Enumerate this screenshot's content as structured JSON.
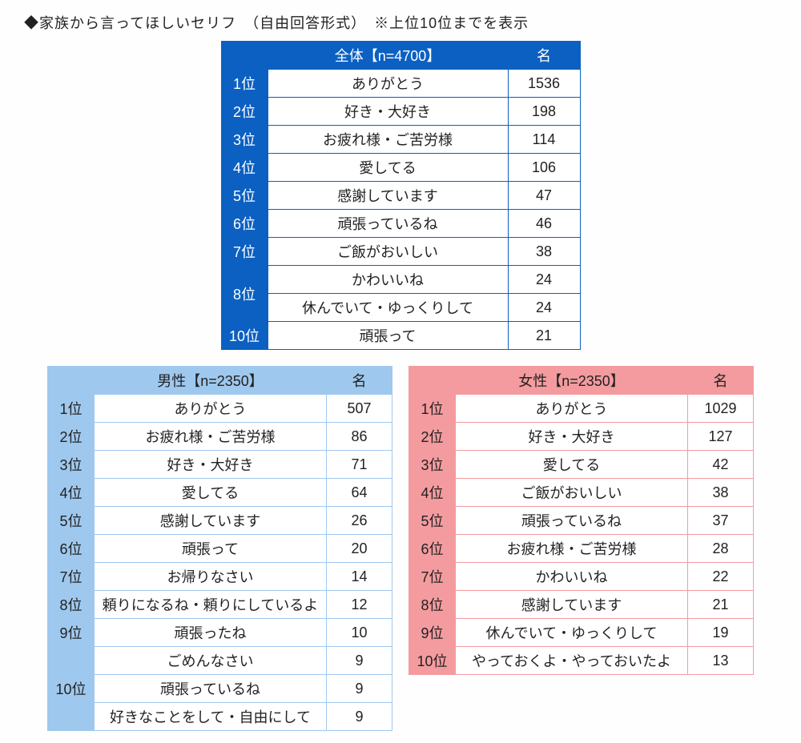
{
  "title": "◆家族から言ってほしいセリフ　（自由回答形式）　※上位10位までを表示",
  "countHeader": "名",
  "tables": {
    "main": {
      "theme": "main",
      "header": "全体【n=4700】",
      "colWidths": {
        "rank": 58,
        "label": 300,
        "count": 90
      },
      "rows": [
        {
          "rank": "1位",
          "label": "ありがとう",
          "count": 1536
        },
        {
          "rank": "2位",
          "label": "好き・大好き",
          "count": 198
        },
        {
          "rank": "3位",
          "label": "お疲れ様・ご苦労様",
          "count": 114
        },
        {
          "rank": "4位",
          "label": "愛してる",
          "count": 106
        },
        {
          "rank": "5位",
          "label": "感謝しています",
          "count": 47
        },
        {
          "rank": "6位",
          "label": "頑張っているね",
          "count": 46
        },
        {
          "rank": "7位",
          "label": "ご飯がおいしい",
          "count": 38
        },
        {
          "rank": "8位",
          "span": 2,
          "label": "かわいいね",
          "count": 24
        },
        {
          "label": "休んでいて・ゆっくりして",
          "count": 24
        },
        {
          "rank": "10位",
          "label": "頑張って",
          "count": 21
        }
      ]
    },
    "male": {
      "theme": "male",
      "header": "男性【n=2350】",
      "colWidths": {
        "rank": 58,
        "label": 290,
        "count": 82
      },
      "rows": [
        {
          "rank": "1位",
          "label": "ありがとう",
          "count": 507
        },
        {
          "rank": "2位",
          "label": "お疲れ様・ご苦労様",
          "count": 86
        },
        {
          "rank": "3位",
          "label": "好き・大好き",
          "count": 71
        },
        {
          "rank": "4位",
          "label": "愛してる",
          "count": 64
        },
        {
          "rank": "5位",
          "label": "感謝しています",
          "count": 26
        },
        {
          "rank": "6位",
          "label": "頑張って",
          "count": 20
        },
        {
          "rank": "7位",
          "label": "お帰りなさい",
          "count": 14
        },
        {
          "rank": "8位",
          "label": "頼りになるね・頼りにしているよ",
          "count": 12
        },
        {
          "rank": "9位",
          "label": "頑張ったね",
          "count": 10
        },
        {
          "rank": "10位",
          "span": 3,
          "label": "ごめんなさい",
          "count": 9
        },
        {
          "label": "頑張っているね",
          "count": 9
        },
        {
          "label": "好きなことをして・自由にして",
          "count": 9
        }
      ]
    },
    "female": {
      "theme": "female",
      "header": "女性【n=2350】",
      "colWidths": {
        "rank": 58,
        "label": 290,
        "count": 82
      },
      "rows": [
        {
          "rank": "1位",
          "label": "ありがとう",
          "count": 1029
        },
        {
          "rank": "2位",
          "label": "好き・大好き",
          "count": 127
        },
        {
          "rank": "3位",
          "label": "愛してる",
          "count": 42
        },
        {
          "rank": "4位",
          "label": "ご飯がおいしい",
          "count": 38
        },
        {
          "rank": "5位",
          "label": "頑張っているね",
          "count": 37
        },
        {
          "rank": "6位",
          "label": "お疲れ様・ご苦労様",
          "count": 28
        },
        {
          "rank": "7位",
          "label": "かわいいね",
          "count": 22
        },
        {
          "rank": "8位",
          "label": "感謝しています",
          "count": 21
        },
        {
          "rank": "9位",
          "label": "休んでいて・ゆっくりして",
          "count": 19
        },
        {
          "rank": "10位",
          "label": "やっておくよ・やっておいたよ",
          "count": 13
        }
      ]
    }
  }
}
